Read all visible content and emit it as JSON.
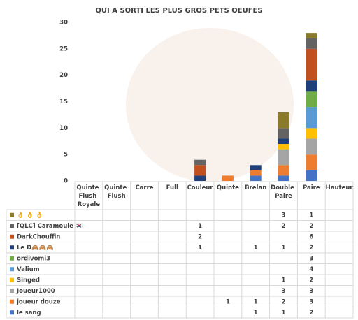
{
  "chart_data": {
    "type": "bar",
    "stacked": true,
    "title": "QUI A SORTI LES PLUS GROS PETS OEUFES",
    "categories": [
      "Quinte Flush Royale",
      "Quinte Flush",
      "Carre",
      "Full",
      "Couleur",
      "Quinte",
      "Brelan",
      "Double Paire",
      "Paire",
      "Hauteur"
    ],
    "ylim": [
      0,
      30
    ],
    "yticks": [
      0,
      5,
      10,
      15,
      20,
      25,
      30
    ],
    "series": [
      {
        "name": "👌 👌 👌",
        "color": "#8c7a2b",
        "values": [
          null,
          null,
          null,
          null,
          null,
          null,
          null,
          3,
          1,
          null
        ]
      },
      {
        "name": "[QLC] Caramoule 🇰🇷",
        "color": "#636363",
        "values": [
          null,
          null,
          null,
          null,
          1,
          null,
          null,
          2,
          2,
          null
        ]
      },
      {
        "name": "DarkChouffin",
        "color": "#c0501e",
        "values": [
          null,
          null,
          null,
          null,
          2,
          null,
          null,
          null,
          6,
          null
        ]
      },
      {
        "name": "Le D🙈🙈🙈",
        "color": "#1f3f7a",
        "values": [
          null,
          null,
          null,
          null,
          1,
          null,
          1,
          1,
          2,
          null
        ]
      },
      {
        "name": "ordivomi3",
        "color": "#70ad47",
        "values": [
          null,
          null,
          null,
          null,
          null,
          null,
          null,
          null,
          3,
          null
        ]
      },
      {
        "name": "Valium",
        "color": "#5b9bd5",
        "values": [
          null,
          null,
          null,
          null,
          null,
          null,
          null,
          null,
          4,
          null
        ]
      },
      {
        "name": "Singed",
        "color": "#ffc000",
        "values": [
          null,
          null,
          null,
          null,
          null,
          null,
          null,
          1,
          2,
          null
        ]
      },
      {
        "name": "Joueur1000",
        "color": "#a5a5a5",
        "values": [
          null,
          null,
          null,
          null,
          null,
          null,
          null,
          3,
          3,
          null
        ]
      },
      {
        "name": "joueur douze",
        "color": "#ed7d31",
        "values": [
          null,
          null,
          null,
          null,
          null,
          1,
          1,
          2,
          3,
          null
        ]
      },
      {
        "name": "le sang",
        "color": "#4472c4",
        "values": [
          null,
          null,
          null,
          null,
          null,
          null,
          1,
          1,
          2,
          null
        ]
      }
    ]
  }
}
